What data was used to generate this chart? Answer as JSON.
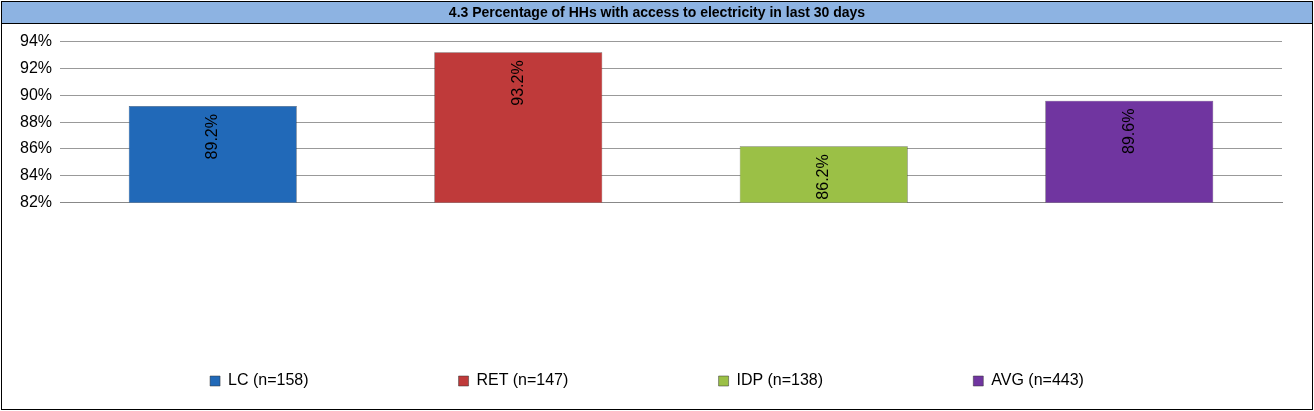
{
  "chart_data": {
    "type": "bar",
    "title": "4.3 Percentage of HHs with access to electricity in last 30 days",
    "categories": [
      null,
      null,
      null,
      null
    ],
    "series": [
      {
        "name": "LC (n=158)",
        "color": "#2169b8",
        "values": [
          89.2,
          null,
          null,
          null
        ],
        "value_labels": [
          "89.2%",
          null,
          null,
          null
        ]
      },
      {
        "name": "RET (n=147)",
        "color": "#bf3a3a",
        "values": [
          null,
          93.2,
          null,
          null
        ],
        "value_labels": [
          null,
          "93.2%",
          null,
          null
        ]
      },
      {
        "name": "IDP (n=138)",
        "color": "#9bc046",
        "values": [
          null,
          null,
          86.2,
          null
        ],
        "value_labels": [
          null,
          null,
          "86.2%",
          null
        ]
      },
      {
        "name": "AVG (n=443)",
        "color": "#7035a0",
        "values": [
          null,
          null,
          null,
          89.6
        ],
        "value_labels": [
          null,
          null,
          null,
          "89.6%"
        ]
      }
    ],
    "ylim": [
      82,
      94
    ],
    "yticks": [
      {
        "value": 82,
        "label": "82%"
      },
      {
        "value": 84,
        "label": "84%"
      },
      {
        "value": 86,
        "label": "86%"
      },
      {
        "value": 88,
        "label": "88%"
      },
      {
        "value": 90,
        "label": "90%"
      },
      {
        "value": 92,
        "label": "92%"
      },
      {
        "value": 94,
        "label": "94%"
      }
    ],
    "grid": "y",
    "legend": "bottom"
  }
}
